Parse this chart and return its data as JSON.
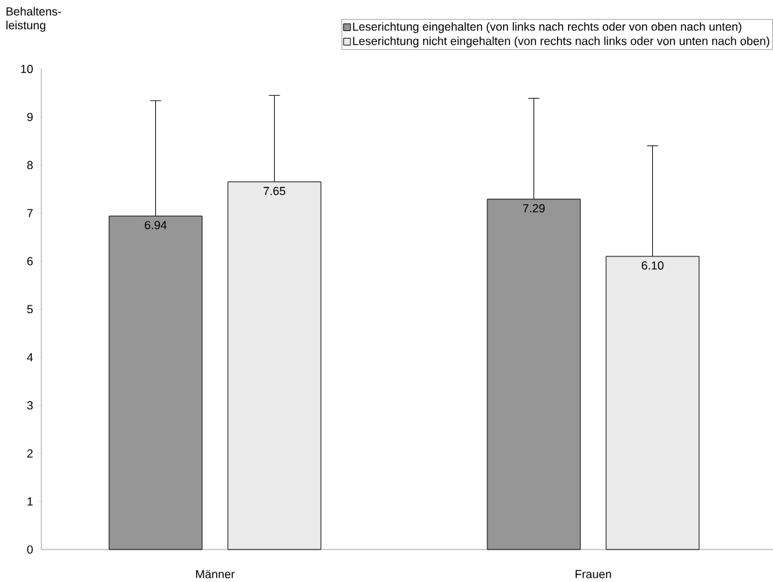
{
  "chart_data": {
    "type": "bar",
    "ylabel": "Behaltens-leistung",
    "categories": [
      "Männer",
      "Frauen"
    ],
    "series": [
      {
        "name": "Leserichtung eingehalten (von links nach rechts oder von oben nach unten)",
        "color": "#969696",
        "values": [
          6.94,
          7.29
        ],
        "errors": [
          2.4,
          2.1
        ],
        "value_labels": [
          "6.94",
          "7.29"
        ]
      },
      {
        "name": "Leserichtung nicht eingehalten (von rechts nach links oder von unten nach oben)",
        "color": "#eaeaea",
        "values": [
          7.65,
          6.1
        ],
        "errors": [
          1.8,
          2.3
        ],
        "value_labels": [
          "7.65",
          "6.10"
        ]
      }
    ],
    "ylim": [
      0,
      10
    ],
    "yticks": [
      0,
      1,
      2,
      3,
      4,
      5,
      6,
      7,
      8,
      9,
      10
    ],
    "legend": "top right",
    "grid": false
  }
}
